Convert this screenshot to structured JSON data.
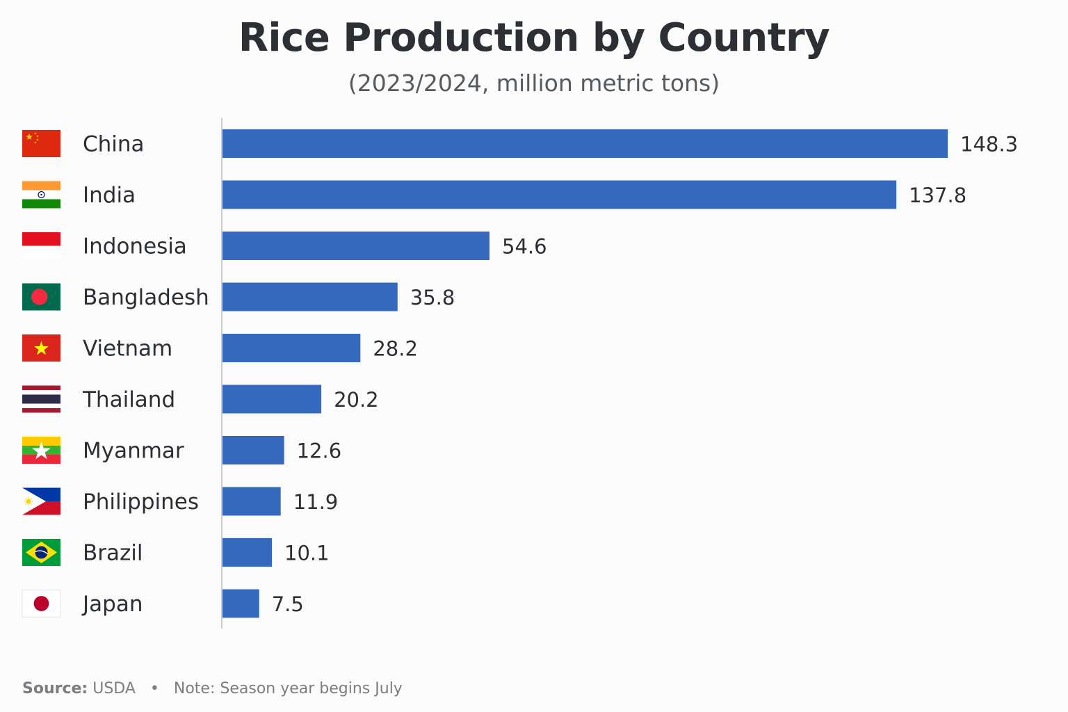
{
  "title": "Rice Production by Country",
  "subtitle": "(2023/2024, million metric tons)",
  "footer": {
    "source_label": "Source:",
    "source_value": "USDA",
    "separator": "•",
    "note": "Note: Season year begins July"
  },
  "colors": {
    "bar": "#3569be",
    "axis": "#b9bcc0",
    "label": "#2b2f33"
  },
  "chart_data": {
    "type": "bar",
    "orientation": "horizontal",
    "categories": [
      "China",
      "India",
      "Indonesia",
      "Bangladesh",
      "Vietnam",
      "Thailand",
      "Myanmar",
      "Philippines",
      "Brazil",
      "Japan"
    ],
    "values": [
      148.3,
      137.8,
      54.6,
      35.8,
      28.2,
      20.2,
      12.6,
      11.9,
      10.1,
      7.5
    ],
    "value_labels": [
      "148.3",
      "137.8",
      "54.6",
      "35.8",
      "28.2",
      "20.2",
      "12.6",
      "11.9",
      "10.1",
      "7.5"
    ],
    "flags": [
      "china-flag-icon",
      "india-flag-icon",
      "indonesia-flag-icon",
      "bangladesh-flag-icon",
      "vietnam-flag-icon",
      "thailand-flag-icon",
      "myanmar-flag-icon",
      "philippines-flag-icon",
      "brazil-flag-icon",
      "japan-flag-icon"
    ],
    "title": "Rice Production by Country",
    "subtitle": "(2023/2024, million metric tons)",
    "xlabel": "",
    "ylabel": "",
    "xlim": [
      0,
      148.3
    ],
    "grid": false,
    "legend": "none"
  }
}
